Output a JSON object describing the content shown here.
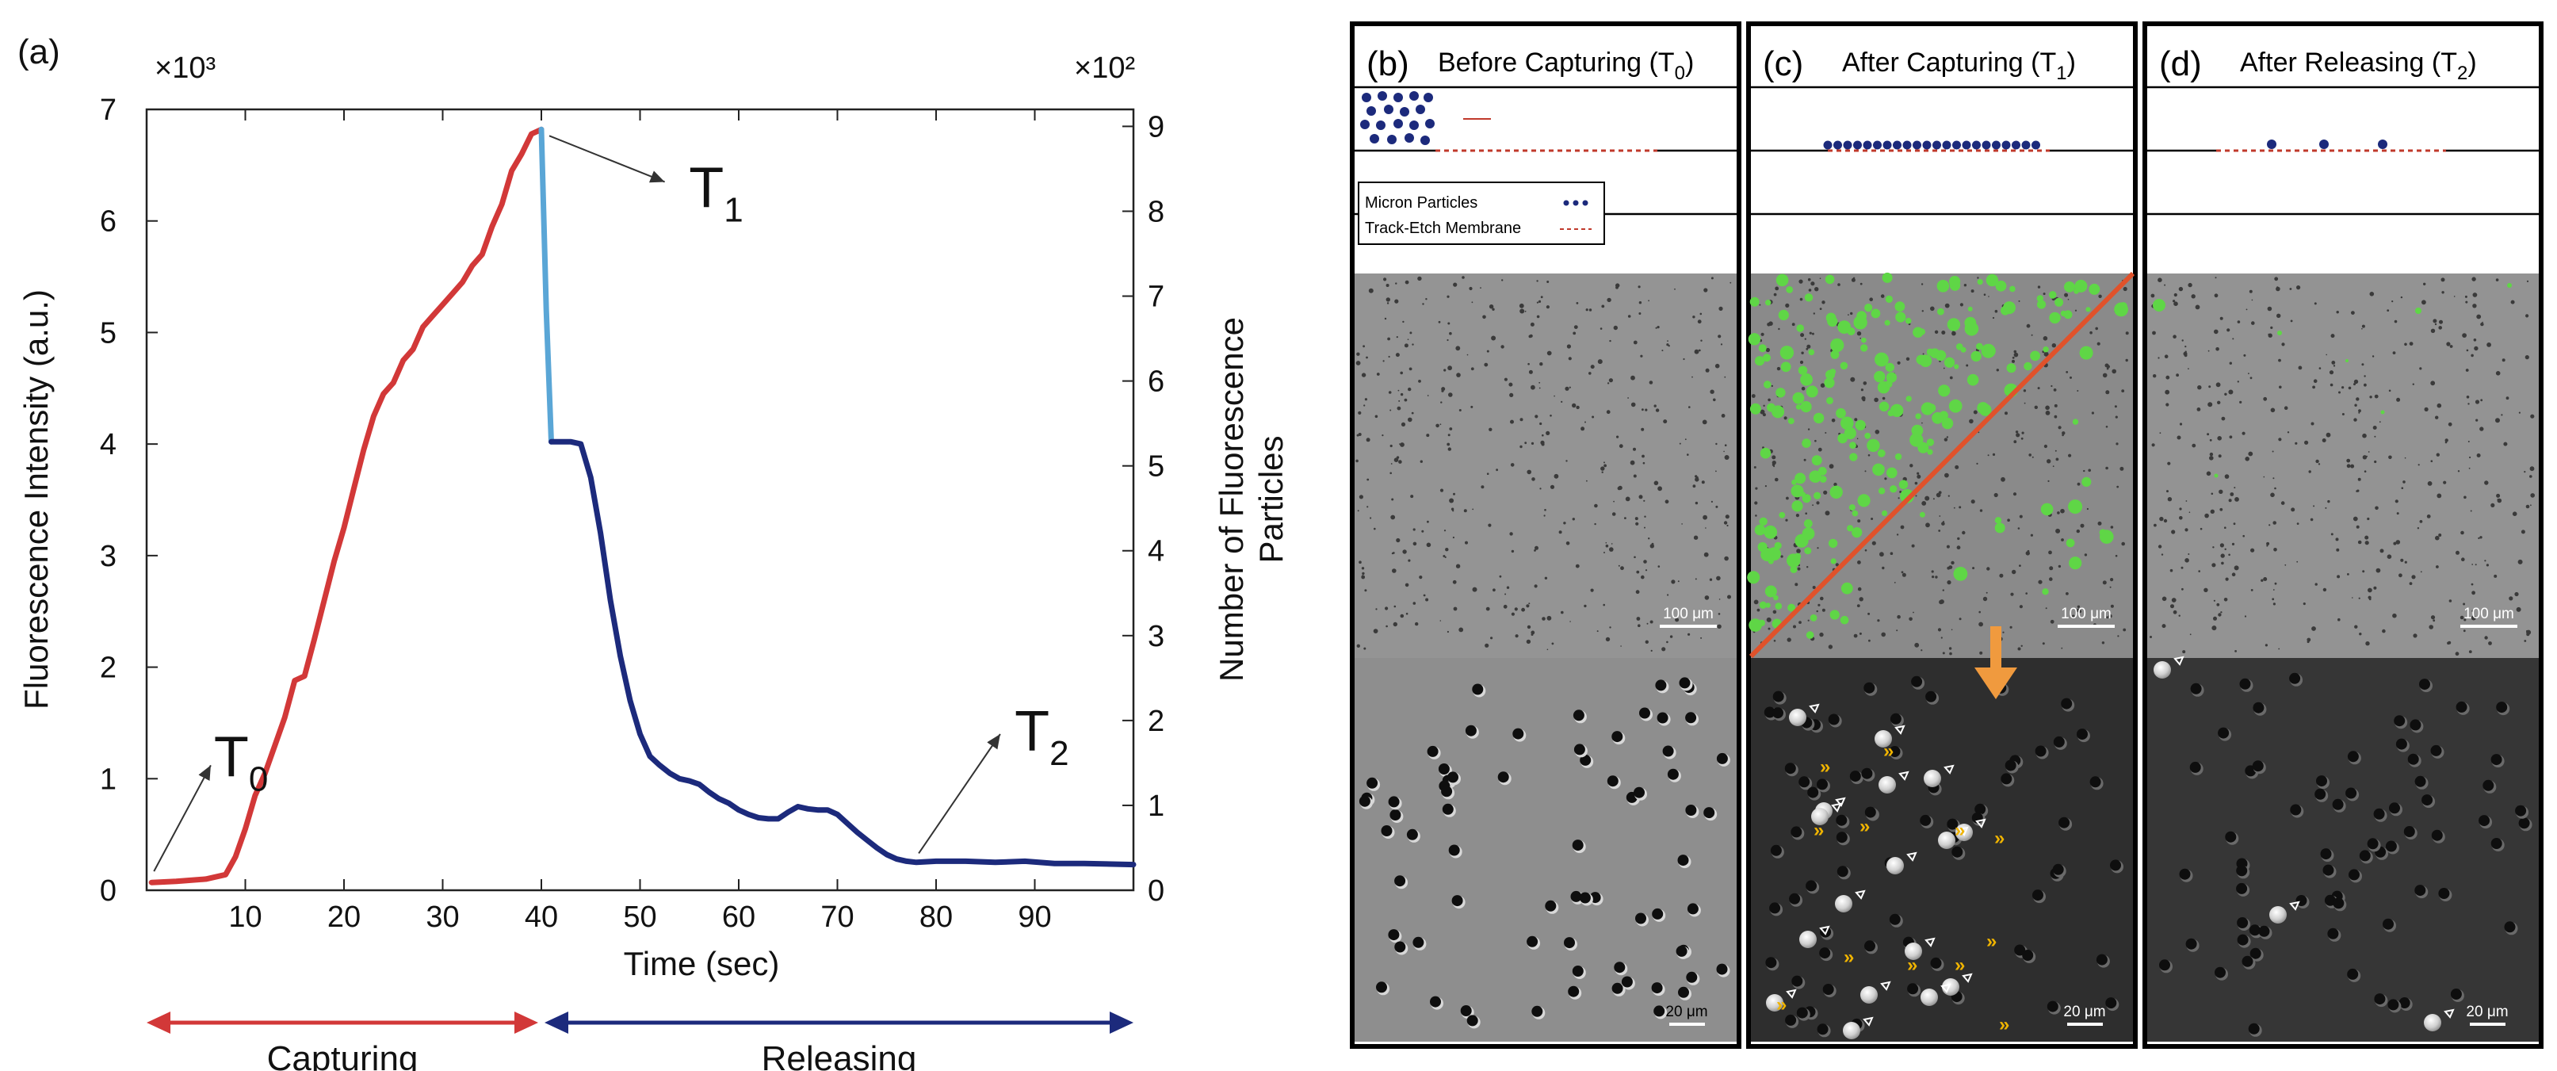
{
  "figure": {
    "panel_a_label": "(a)",
    "panels": [
      {
        "label": "(b)",
        "title_main": "Before Capturing (T",
        "title_sub": "0",
        "title_close": ")",
        "legend_particles": "Micron Particles",
        "legend_membrane": "Track-Etch Membrane",
        "scale_top": "100 μm",
        "scale_bottom": "20 μm"
      },
      {
        "label": "(c)",
        "title_main": "After Capturing (T",
        "title_sub": "1",
        "title_close": ")",
        "scale_top": "100 μm",
        "scale_bottom": "20 μm"
      },
      {
        "label": "(d)",
        "title_main": "After Releasing (T",
        "title_sub": "2",
        "title_close": ")",
        "scale_top": "100 μm",
        "scale_bottom": "20 μm"
      }
    ]
  },
  "chart_data": {
    "type": "line",
    "xlabel": "Time (sec)",
    "ylabel": "Fluorescence Intensity (a.u.)",
    "y2label_line1": "Number of Fluorescence",
    "y2label_line2": "Particles",
    "y_multiplier": "×10³",
    "y2_multiplier": "×10²",
    "xlim": [
      0,
      100
    ],
    "ylim": [
      0,
      7
    ],
    "y2lim": [
      0,
      9.2
    ],
    "xticks": [
      "10",
      "20",
      "30",
      "40",
      "50",
      "60",
      "70",
      "80",
      "90"
    ],
    "yticks": [
      "0",
      "1",
      "2",
      "3",
      "4",
      "5",
      "6",
      "7"
    ],
    "y2ticks": [
      "0",
      "1",
      "2",
      "3",
      "4",
      "5",
      "6",
      "7",
      "8",
      "9"
    ],
    "series": [
      {
        "name": "capturing",
        "color": "#d23838",
        "x": [
          0.5,
          3,
          6,
          8,
          9,
          10,
          11,
          12,
          13,
          14,
          15,
          16,
          17,
          18,
          19,
          20,
          21,
          22,
          23,
          24,
          25,
          26,
          27,
          28,
          29,
          30,
          31,
          32,
          33,
          34,
          35,
          36,
          37,
          38,
          39,
          40
        ],
        "y": [
          0.07,
          0.08,
          0.1,
          0.14,
          0.3,
          0.55,
          0.85,
          1.05,
          1.3,
          1.55,
          1.88,
          1.92,
          2.25,
          2.6,
          2.95,
          3.25,
          3.6,
          3.95,
          4.25,
          4.45,
          4.55,
          4.75,
          4.85,
          5.05,
          5.15,
          5.25,
          5.35,
          5.45,
          5.6,
          5.7,
          5.95,
          6.15,
          6.45,
          6.6,
          6.78,
          6.82
        ]
      },
      {
        "name": "drop",
        "color": "#5aa6d6",
        "x": [
          40,
          40.5,
          41
        ],
        "y": [
          6.82,
          5.2,
          4.02
        ]
      },
      {
        "name": "releasing",
        "color": "#1c2a7c",
        "x": [
          41,
          42,
          43,
          44,
          45,
          46,
          47,
          48,
          49,
          50,
          51,
          52,
          53,
          54,
          55,
          56,
          57,
          58,
          59,
          60,
          61,
          62,
          63,
          64,
          65,
          66,
          67,
          68,
          69,
          70,
          71,
          72,
          73,
          74,
          75,
          76,
          77,
          78,
          80,
          83,
          86,
          89,
          92,
          95,
          100
        ],
        "y": [
          4.02,
          4.02,
          4.02,
          4.0,
          3.7,
          3.2,
          2.6,
          2.1,
          1.7,
          1.4,
          1.2,
          1.12,
          1.05,
          1.0,
          0.98,
          0.95,
          0.88,
          0.82,
          0.78,
          0.72,
          0.68,
          0.65,
          0.64,
          0.64,
          0.7,
          0.75,
          0.73,
          0.72,
          0.72,
          0.68,
          0.6,
          0.52,
          0.45,
          0.38,
          0.32,
          0.28,
          0.26,
          0.25,
          0.26,
          0.26,
          0.25,
          0.26,
          0.24,
          0.24,
          0.23
        ]
      }
    ],
    "annotations": [
      {
        "label": "T",
        "sub": "0",
        "x": 0.5,
        "y": 0.07
      },
      {
        "label": "T",
        "sub": "1",
        "x": 40,
        "y": 6.82
      },
      {
        "label": "T",
        "sub": "2",
        "x": 78,
        "y": 0.26
      }
    ],
    "phases": [
      {
        "label": "Capturing",
        "color": "#d23838",
        "x_start": 0,
        "x_end": 40
      },
      {
        "label": "Releasing",
        "color": "#1c2a7c",
        "x_start": 40,
        "x_end": 100
      }
    ]
  }
}
